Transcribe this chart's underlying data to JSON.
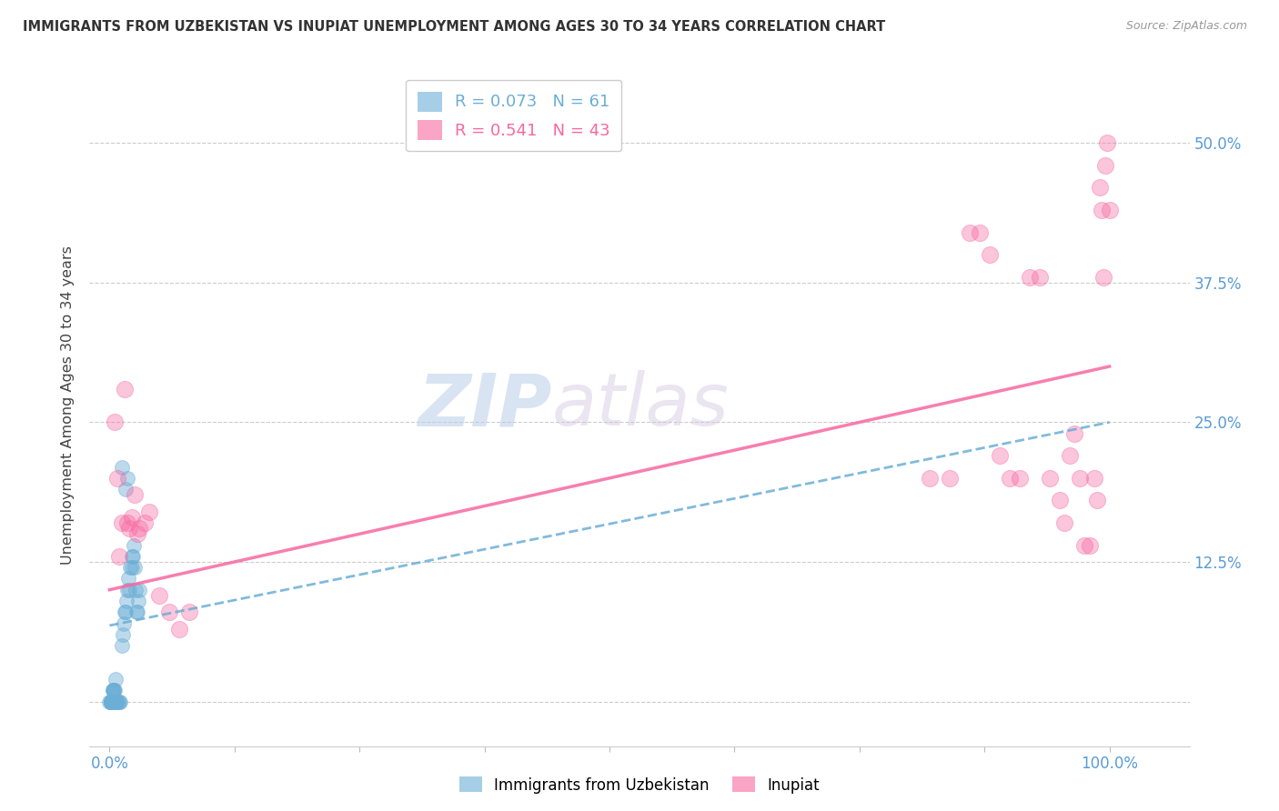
{
  "title": "IMMIGRANTS FROM UZBEKISTAN VS INUPIAT UNEMPLOYMENT AMONG AGES 30 TO 34 YEARS CORRELATION CHART",
  "source": "Source: ZipAtlas.com",
  "tick_color": "#5b9bd5",
  "ylabel": "Unemployment Among Ages 30 to 34 years",
  "x_ticks": [
    0.0,
    0.125,
    0.25,
    0.375,
    0.5,
    0.625,
    0.75,
    0.875,
    1.0
  ],
  "x_tick_labels": [
    "0.0%",
    "",
    "",
    "",
    "",
    "",
    "",
    "",
    "100.0%"
  ],
  "y_ticks": [
    0.0,
    0.125,
    0.25,
    0.375,
    0.5
  ],
  "y_tick_labels": [
    "",
    "12.5%",
    "25.0%",
    "37.5%",
    "50.0%"
  ],
  "xlim": [
    -0.02,
    1.08
  ],
  "ylim": [
    -0.04,
    0.57
  ],
  "blue_color": "#6baed6",
  "pink_color": "#f768a1",
  "legend_R_blue": "0.073",
  "legend_N_blue": "61",
  "legend_R_pink": "0.541",
  "legend_N_pink": "43",
  "watermark_zip": "ZIP",
  "watermark_atlas": "atlas",
  "blue_scatter_x": [
    0.0,
    0.001,
    0.001,
    0.001,
    0.001,
    0.001,
    0.001,
    0.001,
    0.002,
    0.002,
    0.002,
    0.002,
    0.002,
    0.002,
    0.002,
    0.002,
    0.002,
    0.003,
    0.003,
    0.003,
    0.003,
    0.003,
    0.003,
    0.003,
    0.004,
    0.004,
    0.004,
    0.004,
    0.005,
    0.005,
    0.005,
    0.006,
    0.006,
    0.007,
    0.008,
    0.009,
    0.01,
    0.011,
    0.012,
    0.013,
    0.014,
    0.015,
    0.016,
    0.017,
    0.018,
    0.019,
    0.02,
    0.021,
    0.022,
    0.023,
    0.024,
    0.025,
    0.026,
    0.027,
    0.028,
    0.029,
    0.03,
    0.022,
    0.018,
    0.016,
    0.012
  ],
  "blue_scatter_y": [
    0.0,
    0.0,
    0.0,
    0.0,
    0.0,
    0.0,
    0.0,
    0.0,
    0.0,
    0.0,
    0.0,
    0.0,
    0.0,
    0.0,
    0.0,
    0.0,
    0.0,
    0.0,
    0.0,
    0.0,
    0.0,
    0.0,
    0.01,
    0.01,
    0.0,
    0.0,
    0.01,
    0.01,
    0.0,
    0.0,
    0.01,
    0.0,
    0.02,
    0.0,
    0.0,
    0.0,
    0.0,
    0.0,
    0.05,
    0.06,
    0.07,
    0.08,
    0.08,
    0.09,
    0.1,
    0.11,
    0.1,
    0.12,
    0.12,
    0.13,
    0.14,
    0.12,
    0.1,
    0.08,
    0.08,
    0.09,
    0.1,
    0.13,
    0.2,
    0.19,
    0.21
  ],
  "pink_scatter_x": [
    0.005,
    0.008,
    0.01,
    0.012,
    0.015,
    0.018,
    0.02,
    0.022,
    0.025,
    0.028,
    0.03,
    0.035,
    0.04,
    0.05,
    0.06,
    0.07,
    0.08,
    0.82,
    0.84,
    0.86,
    0.87,
    0.88,
    0.89,
    0.9,
    0.91,
    0.92,
    0.93,
    0.94,
    0.95,
    0.955,
    0.96,
    0.965,
    0.97,
    0.975,
    0.98,
    0.985,
    0.988,
    0.99,
    0.992,
    0.994,
    0.996,
    0.998,
    1.0
  ],
  "pink_scatter_y": [
    0.25,
    0.2,
    0.13,
    0.16,
    0.28,
    0.16,
    0.155,
    0.165,
    0.185,
    0.15,
    0.155,
    0.16,
    0.17,
    0.095,
    0.08,
    0.065,
    0.08,
    0.2,
    0.2,
    0.42,
    0.42,
    0.4,
    0.22,
    0.2,
    0.2,
    0.38,
    0.38,
    0.2,
    0.18,
    0.16,
    0.22,
    0.24,
    0.2,
    0.14,
    0.14,
    0.2,
    0.18,
    0.46,
    0.44,
    0.38,
    0.48,
    0.5,
    0.44
  ],
  "blue_line_x0": 0.0,
  "blue_line_x1": 1.0,
  "blue_line_y0": 0.068,
  "blue_line_y1": 0.25,
  "pink_line_x0": 0.0,
  "pink_line_x1": 1.0,
  "pink_line_y0": 0.1,
  "pink_line_y1": 0.3
}
